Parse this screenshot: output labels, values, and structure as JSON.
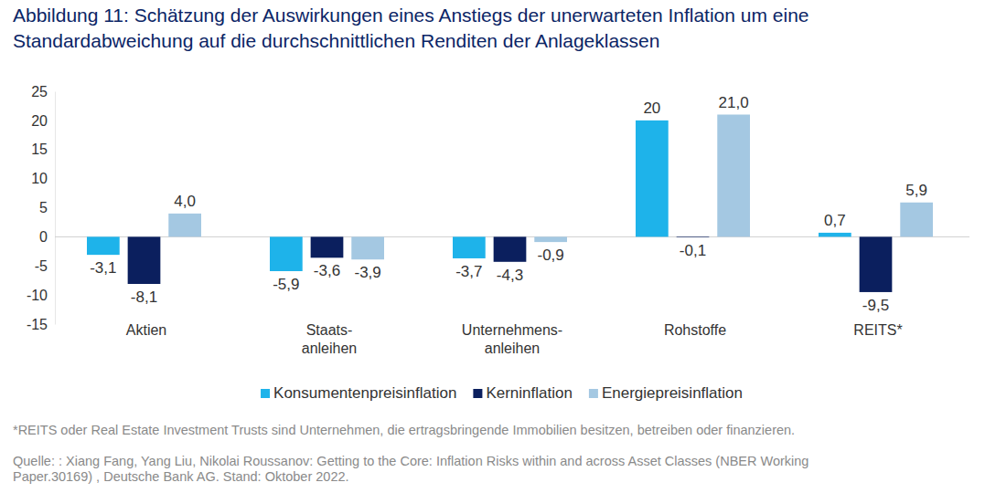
{
  "chart_data": {
    "type": "bar",
    "title": [
      "Abbildung 11: Schätzung der Auswirkungen eines Anstiegs der unerwarteten Inflation um eine",
      "Standardabweichung auf die durchschnittlichen Renditen der Anlageklassen"
    ],
    "categories": [
      "Aktien",
      "Staats-\nanleihen",
      "Unternehmens-\nanleihen",
      "Rohstoffe",
      "REITS*"
    ],
    "series": [
      {
        "name": "Konsumentenpreisinflation",
        "color": "#1eb3ea",
        "values": [
          -3.1,
          -5.9,
          -3.7,
          20,
          0.7
        ],
        "value_labels": [
          "-3,1",
          "-5,9",
          "-3,7",
          "20",
          "0,7"
        ]
      },
      {
        "name": "Kerninflation",
        "color": "#0b1f5e",
        "values": [
          -8.1,
          -3.6,
          -4.3,
          -0.1,
          -9.5
        ],
        "value_labels": [
          "-8,1",
          "-3,6",
          "-4,3",
          "-0,1",
          "-9,5"
        ]
      },
      {
        "name": "Energiepreisinflation",
        "color": "#a4c8e2",
        "values": [
          4.0,
          -3.9,
          -0.9,
          21.0,
          5.9
        ],
        "value_labels": [
          "4,0",
          "-3,9",
          "-0,9",
          "21,0",
          "5,9"
        ]
      }
    ],
    "ylim": [
      -15,
      25
    ],
    "yticks": [
      -15,
      -10,
      -5,
      0,
      5,
      10,
      15,
      20,
      25
    ],
    "grid": false,
    "legend": "bottom",
    "data_labels": true,
    "footnote": "*REITS oder Real Estate Investment Trusts sind Unternehmen, die ertragsbringende Immobilien besitzen, betreiben oder finanzieren.",
    "source": [
      "Quelle: : Xiang Fang, Yang Liu, Nikolai Roussanov: Getting to the Core: Inflation Risks within and across Asset Classes (NBER Working",
      "Paper.30169) , Deutsche Bank AG. Stand: Oktober 2022."
    ]
  }
}
